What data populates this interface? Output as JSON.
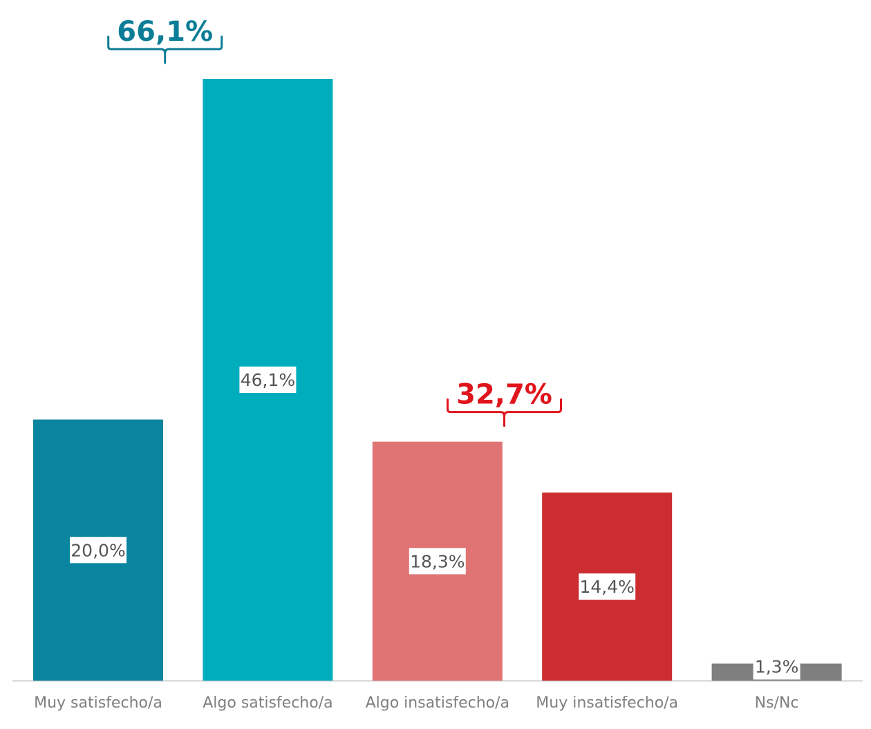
{
  "chart_data": {
    "type": "bar",
    "categories": [
      "Muy satisfecho/a",
      "Algo satisfecho/a",
      "Algo insatisfecho/a",
      "Muy insatisfecho/a",
      "Ns/Nc"
    ],
    "values": [
      20.0,
      46.1,
      18.3,
      14.4,
      1.3
    ],
    "value_labels": [
      "20,0%",
      "46,1%",
      "18,3%",
      "14,4%",
      "1,3%"
    ],
    "colors": [
      "#0a85a0",
      "#00adbd",
      "#e07474",
      "#cb2d30",
      "#7f7f7f"
    ],
    "ylim": [
      0,
      46.1
    ],
    "grid": false,
    "legend": "none",
    "title": "",
    "xlabel": "",
    "ylabel": "",
    "groups": [
      {
        "label": "66,1%",
        "value": 66.1,
        "categories": [
          0,
          1
        ],
        "color": "#0b7d96"
      },
      {
        "label": "32,7%",
        "value": 32.7,
        "categories": [
          2,
          3
        ],
        "color": "#e0141c"
      }
    ]
  }
}
